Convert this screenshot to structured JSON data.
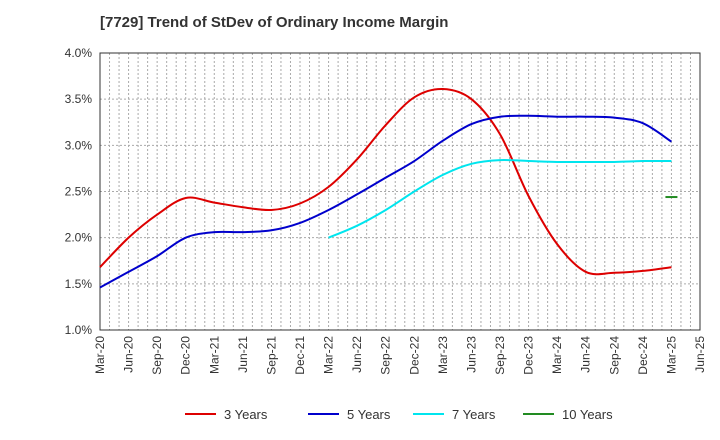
{
  "chart_data": {
    "type": "line",
    "title": "[7729]  Trend of StDev of Ordinary Income Margin",
    "xlabel": "",
    "ylabel": "",
    "x_ticks": [
      "Mar-20",
      "Jun-20",
      "Sep-20",
      "Dec-20",
      "Mar-21",
      "Jun-21",
      "Sep-21",
      "Dec-21",
      "Mar-22",
      "Jun-22",
      "Sep-22",
      "Dec-22",
      "Mar-23",
      "Jun-23",
      "Sep-23",
      "Dec-23",
      "Mar-24",
      "Jun-24",
      "Sep-24",
      "Dec-24",
      "Mar-25",
      "Jun-25"
    ],
    "y_ticks": [
      "1.0%",
      "1.5%",
      "2.0%",
      "2.5%",
      "3.0%",
      "3.5%",
      "4.0%"
    ],
    "ylim": [
      1.0,
      4.0
    ],
    "grid": true,
    "legend_position": "bottom",
    "series": [
      {
        "name": "3 Years",
        "color": "#dd0000",
        "x": [
          "Mar-20",
          "Jun-20",
          "Sep-20",
          "Dec-20",
          "Mar-21",
          "Jun-21",
          "Sep-21",
          "Dec-21",
          "Mar-22",
          "Jun-22",
          "Sep-22",
          "Dec-22",
          "Mar-23",
          "Jun-23",
          "Sep-23",
          "Dec-23",
          "Mar-24",
          "Jun-24",
          "Sep-24",
          "Dec-24",
          "Mar-25"
        ],
        "values": [
          1.68,
          2.0,
          2.25,
          2.43,
          2.38,
          2.33,
          2.3,
          2.37,
          2.55,
          2.85,
          3.22,
          3.52,
          3.61,
          3.5,
          3.12,
          2.45,
          1.93,
          1.63,
          1.62,
          1.64,
          1.68
        ]
      },
      {
        "name": "5 Years",
        "color": "#0000cc",
        "x": [
          "Mar-20",
          "Jun-20",
          "Sep-20",
          "Dec-20",
          "Mar-21",
          "Jun-21",
          "Sep-21",
          "Dec-21",
          "Mar-22",
          "Jun-22",
          "Sep-22",
          "Dec-22",
          "Mar-23",
          "Jun-23",
          "Sep-23",
          "Dec-23",
          "Mar-24",
          "Jun-24",
          "Sep-24",
          "Dec-24",
          "Mar-25"
        ],
        "values": [
          1.46,
          1.63,
          1.8,
          2.0,
          2.06,
          2.06,
          2.08,
          2.16,
          2.3,
          2.47,
          2.65,
          2.83,
          3.05,
          3.23,
          3.31,
          3.32,
          3.31,
          3.31,
          3.3,
          3.24,
          3.04
        ]
      },
      {
        "name": "7 Years",
        "color": "#00e5ee",
        "x": [
          "Mar-22",
          "Jun-22",
          "Sep-22",
          "Dec-22",
          "Mar-23",
          "Jun-23",
          "Sep-23",
          "Dec-23",
          "Mar-24",
          "Jun-24",
          "Sep-24",
          "Dec-24",
          "Mar-25"
        ],
        "values": [
          2.0,
          2.13,
          2.3,
          2.5,
          2.68,
          2.8,
          2.84,
          2.83,
          2.82,
          2.82,
          2.82,
          2.83,
          2.83
        ]
      },
      {
        "name": "10 Years",
        "color": "#228b22",
        "x": [
          "Mar-25"
        ],
        "values": [
          2.44
        ]
      }
    ]
  }
}
